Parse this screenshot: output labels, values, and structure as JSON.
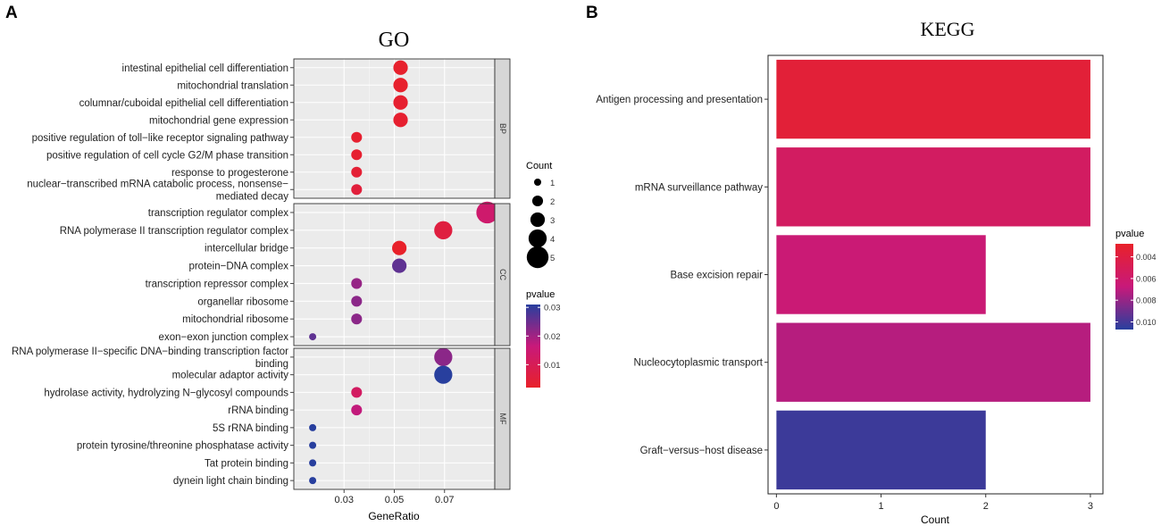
{
  "chart_data": [
    {
      "panel_label": "A",
      "type": "scatter",
      "title": "GO",
      "xlabel": "GeneRatio",
      "x_ticks": [
        0.03,
        0.05,
        0.07
      ],
      "xlim": [
        0.01,
        0.09
      ],
      "facets": [
        {
          "name": "BP",
          "terms": [
            {
              "label": [
                "intestinal epithelial cell differentiation"
              ],
              "gene_ratio": 0.0525,
              "count": 3,
              "pvalue": 0.0025
            },
            {
              "label": [
                "mitochondrial translation"
              ],
              "gene_ratio": 0.0525,
              "count": 3,
              "pvalue": 0.0025
            },
            {
              "label": [
                "columnar/cuboidal epithelial cell differentiation"
              ],
              "gene_ratio": 0.0525,
              "count": 3,
              "pvalue": 0.003
            },
            {
              "label": [
                "mitochondrial gene expression"
              ],
              "gene_ratio": 0.0525,
              "count": 3,
              "pvalue": 0.003
            },
            {
              "label": [
                "positive regulation of toll−like receptor signaling pathway"
              ],
              "gene_ratio": 0.035,
              "count": 2,
              "pvalue": 0.003
            },
            {
              "label": [
                "positive regulation of cell cycle G2/M phase transition"
              ],
              "gene_ratio": 0.035,
              "count": 2,
              "pvalue": 0.003
            },
            {
              "label": [
                "response to progesterone"
              ],
              "gene_ratio": 0.035,
              "count": 2,
              "pvalue": 0.004
            },
            {
              "label": [
                "nuclear−transcribed mRNA catabolic process, nonsense−",
                "mediated decay"
              ],
              "gene_ratio": 0.035,
              "count": 2,
              "pvalue": 0.005
            }
          ]
        },
        {
          "name": "CC",
          "terms": [
            {
              "label": [
                "transcription regulator complex"
              ],
              "gene_ratio": 0.087,
              "count": 5,
              "pvalue": 0.014
            },
            {
              "label": [
                "RNA polymerase II transcription regulator complex"
              ],
              "gene_ratio": 0.0695,
              "count": 4,
              "pvalue": 0.006
            },
            {
              "label": [
                "intercellular bridge"
              ],
              "gene_ratio": 0.052,
              "count": 3,
              "pvalue": 0.002
            },
            {
              "label": [
                "protein−DNA complex"
              ],
              "gene_ratio": 0.052,
              "count": 3,
              "pvalue": 0.026
            },
            {
              "label": [
                "transcription repressor complex"
              ],
              "gene_ratio": 0.035,
              "count": 2,
              "pvalue": 0.021
            },
            {
              "label": [
                "organellar ribosome"
              ],
              "gene_ratio": 0.035,
              "count": 2,
              "pvalue": 0.022
            },
            {
              "label": [
                "mitochondrial ribosome"
              ],
              "gene_ratio": 0.035,
              "count": 2,
              "pvalue": 0.022
            },
            {
              "label": [
                "exon−exon junction complex"
              ],
              "gene_ratio": 0.0175,
              "count": 1,
              "pvalue": 0.026
            }
          ]
        },
        {
          "name": "MF",
          "terms": [
            {
              "label": [
                "RNA polymerase II−specific DNA−binding transcription factor",
                "binding"
              ],
              "gene_ratio": 0.0695,
              "count": 4,
              "pvalue": 0.022
            },
            {
              "label": [
                "molecular adaptor activity"
              ],
              "gene_ratio": 0.0695,
              "count": 4,
              "pvalue": 0.031
            },
            {
              "label": [
                "hydrolase activity, hydrolyzing N−glycosyl compounds"
              ],
              "gene_ratio": 0.035,
              "count": 2,
              "pvalue": 0.012
            },
            {
              "label": [
                "rRNA binding"
              ],
              "gene_ratio": 0.035,
              "count": 2,
              "pvalue": 0.017
            },
            {
              "label": [
                "5S rRNA binding"
              ],
              "gene_ratio": 0.0175,
              "count": 1,
              "pvalue": 0.031
            },
            {
              "label": [
                "protein tyrosine/threonine phosphatase activity"
              ],
              "gene_ratio": 0.0175,
              "count": 1,
              "pvalue": 0.031
            },
            {
              "label": [
                "Tat protein binding"
              ],
              "gene_ratio": 0.0175,
              "count": 1,
              "pvalue": 0.031
            },
            {
              "label": [
                "dynein light chain binding"
              ],
              "gene_ratio": 0.0175,
              "count": 1,
              "pvalue": 0.031
            }
          ]
        }
      ],
      "legend_count": {
        "title": "Count",
        "values": [
          1,
          2,
          3,
          4,
          5
        ]
      },
      "legend_pvalue": {
        "title": "pvalue",
        "ticks": [
          0.03,
          0.02,
          0.01
        ],
        "range": [
          0.002,
          0.031
        ]
      },
      "colorscale": {
        "low": "#e8212a",
        "high": "#283f9e"
      }
    },
    {
      "panel_label": "B",
      "type": "bar",
      "orientation": "horizontal",
      "title": "KEGG",
      "xlabel": "Count",
      "x_ticks": [
        0,
        1,
        2,
        3
      ],
      "xlim": [
        -0.08,
        3.12
      ],
      "categories": [
        "Antigen processing and presentation",
        "mRNA surveillance pathway",
        "Base excision repair",
        "Nucleocytoplasmic transport",
        "Graft−versus−host disease"
      ],
      "values": [
        3,
        3,
        2,
        3,
        2
      ],
      "pvalues": [
        0.0035,
        0.0055,
        0.0065,
        0.0072,
        0.0102
      ],
      "legend_pvalue": {
        "title": "pvalue",
        "ticks": [
          0.004,
          0.006,
          0.008,
          0.01
        ],
        "tick_labels": [
          "0.004",
          "0.006",
          "0.008",
          "0.010"
        ],
        "range": [
          0.0028,
          0.0107
        ]
      },
      "colorscale": {
        "low": "#e8212a",
        "high": "#283f9e"
      }
    }
  ]
}
